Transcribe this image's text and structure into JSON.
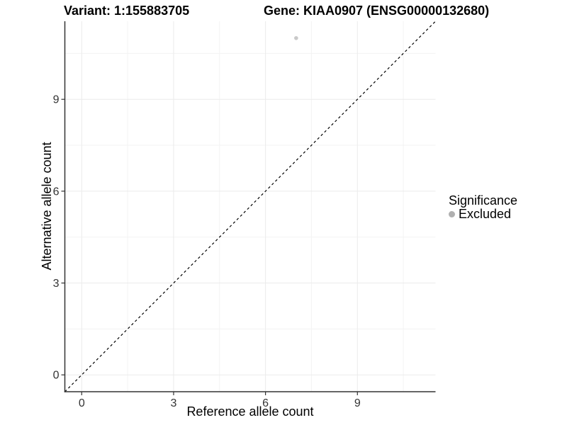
{
  "chart_data": {
    "type": "scatter",
    "title_left": "Variant: 1:155883705",
    "title_right": "Gene: KIAA0907 (ENSG00000132680)",
    "xlabel": "Reference allele count",
    "ylabel": "Alternative allele count",
    "xlim": [
      -0.55,
      11.55
    ],
    "ylim": [
      -0.55,
      11.55
    ],
    "xticks": [
      0,
      3,
      6,
      9
    ],
    "yticks": [
      0,
      3,
      6,
      9
    ],
    "xticks_minor": [
      1.5,
      4.5,
      7.5,
      10.5
    ],
    "yticks_minor": [
      1.5,
      4.5,
      7.5,
      10.5
    ],
    "grid": "major-and-minor",
    "legend_position": "right",
    "legend": {
      "title": "Significance",
      "items": [
        {
          "label": "Excluded",
          "color": "#b0b0b0"
        }
      ]
    },
    "series": [
      {
        "name": "Excluded",
        "marker": "circle",
        "color": "#c9c9c9",
        "points": [
          {
            "x": 7,
            "y": 11
          }
        ]
      }
    ],
    "reference_line": {
      "type": "identity",
      "slope": 1,
      "intercept": 0,
      "style": "dashed",
      "color": "#000000"
    }
  },
  "colors": {
    "background": "#ffffff",
    "grid_major": "#ebebeb",
    "grid_minor": "#f3f3f3",
    "axis_line": "#333333",
    "tick_mark": "#333333",
    "tick_label": "#333333",
    "text": "#000000"
  }
}
